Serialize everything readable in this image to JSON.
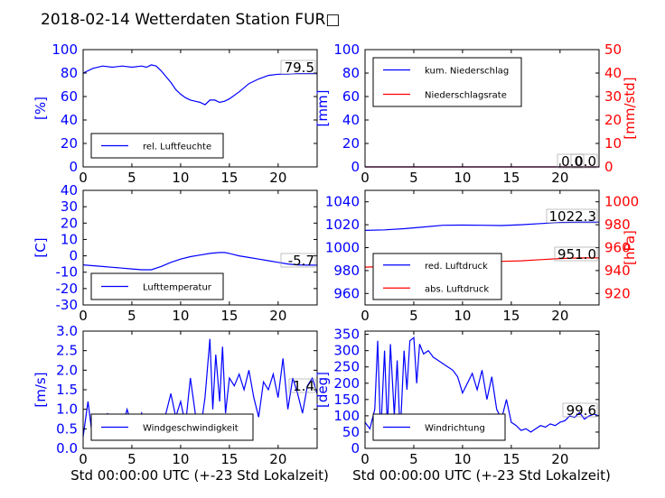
{
  "title": "2018-02-14 Wetterdaten Station FUR□",
  "xlabel": "Std 00:00:00 UTC (+-23 Std Lokalzeit)",
  "colors": {
    "left_axis": "#0000ff",
    "right_axis": "#ff0000",
    "text": "#000000"
  },
  "chart_data": [
    {
      "id": "humidity",
      "type": "line",
      "ylabel": "[%]",
      "xlim": [
        0,
        24
      ],
      "ylim": [
        0,
        100
      ],
      "xticks": [
        0,
        5,
        10,
        15,
        20
      ],
      "yticks": [
        0,
        20,
        40,
        60,
        80,
        100
      ],
      "legend": "bottom-left",
      "annotation": "79.5",
      "series": [
        {
          "name": "rel. Luftfeuchte",
          "color": "#0000ff",
          "x": [
            0,
            1,
            2,
            3,
            4,
            5,
            6,
            6.5,
            7,
            7.5,
            8,
            8.5,
            9,
            9.5,
            10,
            10.5,
            11,
            11.5,
            12,
            12.5,
            13,
            13.5,
            14,
            14.5,
            15,
            16,
            17,
            18,
            19,
            20,
            21,
            22,
            23,
            24
          ],
          "y": [
            80,
            84,
            86,
            85,
            86,
            85,
            86,
            85,
            87,
            86,
            82,
            77,
            72,
            66,
            62,
            59,
            57,
            56,
            55,
            53,
            57,
            57,
            55,
            56,
            58,
            64,
            71,
            75,
            78,
            79,
            79,
            79.5,
            79.5,
            79.5
          ]
        }
      ]
    },
    {
      "id": "precipitation",
      "type": "line",
      "ylabel": "[mm]",
      "ylabel_right": "[mm/std]",
      "xlim": [
        0,
        24
      ],
      "ylim": [
        0,
        100
      ],
      "ylim_right": [
        0,
        50
      ],
      "xticks": [
        0,
        5,
        10,
        15,
        20
      ],
      "yticks": [
        0,
        20,
        40,
        60,
        80,
        100
      ],
      "yticks_right": [
        0,
        10,
        20,
        30,
        40,
        50
      ],
      "legend": "top-left",
      "annotation": "0.0",
      "annotation2": "0.0",
      "series": [
        {
          "name": "kum. Niederschlag",
          "color": "#0000ff",
          "axis": "left",
          "x": [
            0,
            24
          ],
          "y": [
            0,
            0
          ]
        },
        {
          "name": "Niederschlagsrate",
          "color": "#ff0000",
          "axis": "right",
          "x": [
            0,
            24
          ],
          "y": [
            0,
            0
          ]
        }
      ]
    },
    {
      "id": "temperature",
      "type": "line",
      "ylabel": "[C]",
      "xlim": [
        0,
        24
      ],
      "ylim": [
        -30,
        40
      ],
      "xticks": [
        0,
        5,
        10,
        15,
        20
      ],
      "yticks": [
        -30,
        -20,
        -10,
        0,
        10,
        20,
        30,
        40
      ],
      "legend": "bottom-left",
      "annotation": "-5.7",
      "series": [
        {
          "name": "Lufttemperatur",
          "color": "#0000ff",
          "x": [
            0,
            1,
            2,
            3,
            4,
            5,
            6,
            7,
            8,
            9,
            10,
            11,
            12,
            13,
            14,
            14.5,
            15,
            16,
            17,
            18,
            19,
            20,
            21,
            22,
            23,
            24
          ],
          "y": [
            -5.5,
            -6,
            -6.5,
            -7,
            -7.5,
            -8,
            -8.5,
            -8.5,
            -6.5,
            -4,
            -2,
            -0.5,
            0.5,
            1.5,
            2,
            2,
            1.5,
            0,
            -1,
            -2,
            -3,
            -4,
            -5,
            -5.5,
            -5.7,
            -5.7
          ]
        }
      ]
    },
    {
      "id": "pressure",
      "type": "line",
      "ylabel_right": "[hPa]",
      "xlim": [
        0,
        24
      ],
      "ylim": [
        950,
        1050
      ],
      "ylim_right": [
        910,
        1010
      ],
      "xticks": [
        0,
        5,
        10,
        15,
        20
      ],
      "yticks": [
        960,
        980,
        1000,
        1020,
        1040
      ],
      "yticks_right": [
        920,
        940,
        960,
        980,
        1000
      ],
      "legend": "bottom-left",
      "annotation": "1022.3",
      "annotation2": "951.0",
      "series": [
        {
          "name": "red. Luftdruck",
          "color": "#0000ff",
          "axis": "left",
          "x": [
            0,
            2,
            4,
            6,
            8,
            10,
            12,
            14,
            16,
            18,
            20,
            22,
            24
          ],
          "y": [
            1015,
            1015.5,
            1016.5,
            1018,
            1019.5,
            1019.7,
            1019.5,
            1019.3,
            1020,
            1021,
            1022,
            1022.3,
            1022.3
          ]
        },
        {
          "name": "abs. Luftdruck",
          "color": "#ff0000",
          "axis": "right",
          "x": [
            0,
            2,
            4,
            6,
            8,
            10,
            12,
            14,
            16,
            18,
            20,
            22,
            24
          ],
          "y": [
            943,
            943.5,
            944.5,
            946,
            947.5,
            948,
            948,
            948,
            948.5,
            949.5,
            950.5,
            951,
            951
          ]
        }
      ]
    },
    {
      "id": "wind_speed",
      "type": "line",
      "ylabel": "[m/s]",
      "xlim": [
        0,
        24
      ],
      "ylim": [
        0,
        3
      ],
      "xticks": [
        0,
        5,
        10,
        15,
        20
      ],
      "yticks": [
        0,
        0.5,
        1,
        1.5,
        2,
        2.5,
        3
      ],
      "legend": "bottom-left",
      "annotation": "1.4",
      "series": [
        {
          "name": "Windgeschwindigkeit",
          "color": "#0000ff",
          "x": [
            0,
            0.5,
            1,
            1.5,
            2,
            2.5,
            3,
            3.5,
            4,
            4.5,
            5,
            5.5,
            6,
            6.5,
            7,
            7.5,
            8,
            8.5,
            9,
            9.5,
            10,
            10.5,
            11,
            11.5,
            12,
            12.5,
            13,
            13.3,
            13.6,
            14,
            14.3,
            14.6,
            15,
            15.5,
            16,
            16.5,
            17,
            17.5,
            18,
            18.5,
            19,
            19.5,
            20,
            20.5,
            21,
            21.5,
            22,
            22.5,
            23,
            23.5,
            24
          ],
          "y": [
            0.3,
            1.2,
            0.2,
            0.7,
            0.4,
            0.9,
            0.3,
            0.8,
            0.5,
            1.0,
            0.6,
            0.4,
            0.9,
            0.5,
            0.3,
            0.6,
            0.4,
            0.9,
            1.4,
            0.8,
            1.2,
            0.6,
            1.8,
            0.9,
            0.4,
            1.3,
            2.8,
            1.0,
            2.4,
            1.2,
            2.6,
            0.9,
            1.8,
            1.6,
            1.9,
            1.5,
            2.0,
            1.3,
            0.8,
            1.7,
            1.5,
            1.9,
            1.3,
            2.3,
            1.0,
            1.8,
            1.4,
            0.9,
            1.6,
            1.8,
            1.4
          ]
        }
      ]
    },
    {
      "id": "wind_direction",
      "type": "line",
      "ylabel": "[deg]",
      "xlim": [
        0,
        24
      ],
      "ylim": [
        0,
        360
      ],
      "xticks": [
        0,
        5,
        10,
        15,
        20
      ],
      "yticks": [
        0,
        50,
        100,
        150,
        200,
        250,
        300,
        350
      ],
      "legend": "bottom-left",
      "annotation": "99.6",
      "series": [
        {
          "name": "Windrichtung",
          "color": "#0000ff",
          "x": [
            0,
            0.5,
            1,
            1.3,
            1.6,
            2,
            2.3,
            2.6,
            3,
            3.3,
            3.6,
            4,
            4.3,
            4.6,
            5,
            5.3,
            5.6,
            6,
            6.5,
            7,
            7.5,
            8,
            8.5,
            9,
            9.5,
            10,
            10.5,
            11,
            11.5,
            12,
            12.5,
            13,
            13.5,
            14,
            14.5,
            15,
            15.5,
            16,
            16.5,
            17,
            17.5,
            18,
            18.5,
            19,
            19.5,
            20,
            20.5,
            21,
            21.5,
            22,
            22.5,
            23,
            23.5,
            24
          ],
          "y": [
            80,
            60,
            120,
            330,
            40,
            300,
            60,
            320,
            100,
            270,
            40,
            300,
            180,
            330,
            340,
            200,
            320,
            290,
            300,
            280,
            270,
            260,
            250,
            240,
            220,
            170,
            200,
            230,
            180,
            240,
            150,
            220,
            120,
            90,
            150,
            80,
            70,
            55,
            60,
            50,
            60,
            70,
            65,
            75,
            70,
            80,
            85,
            100,
            95,
            110,
            90,
            100,
            105,
            100
          ]
        }
      ]
    }
  ]
}
